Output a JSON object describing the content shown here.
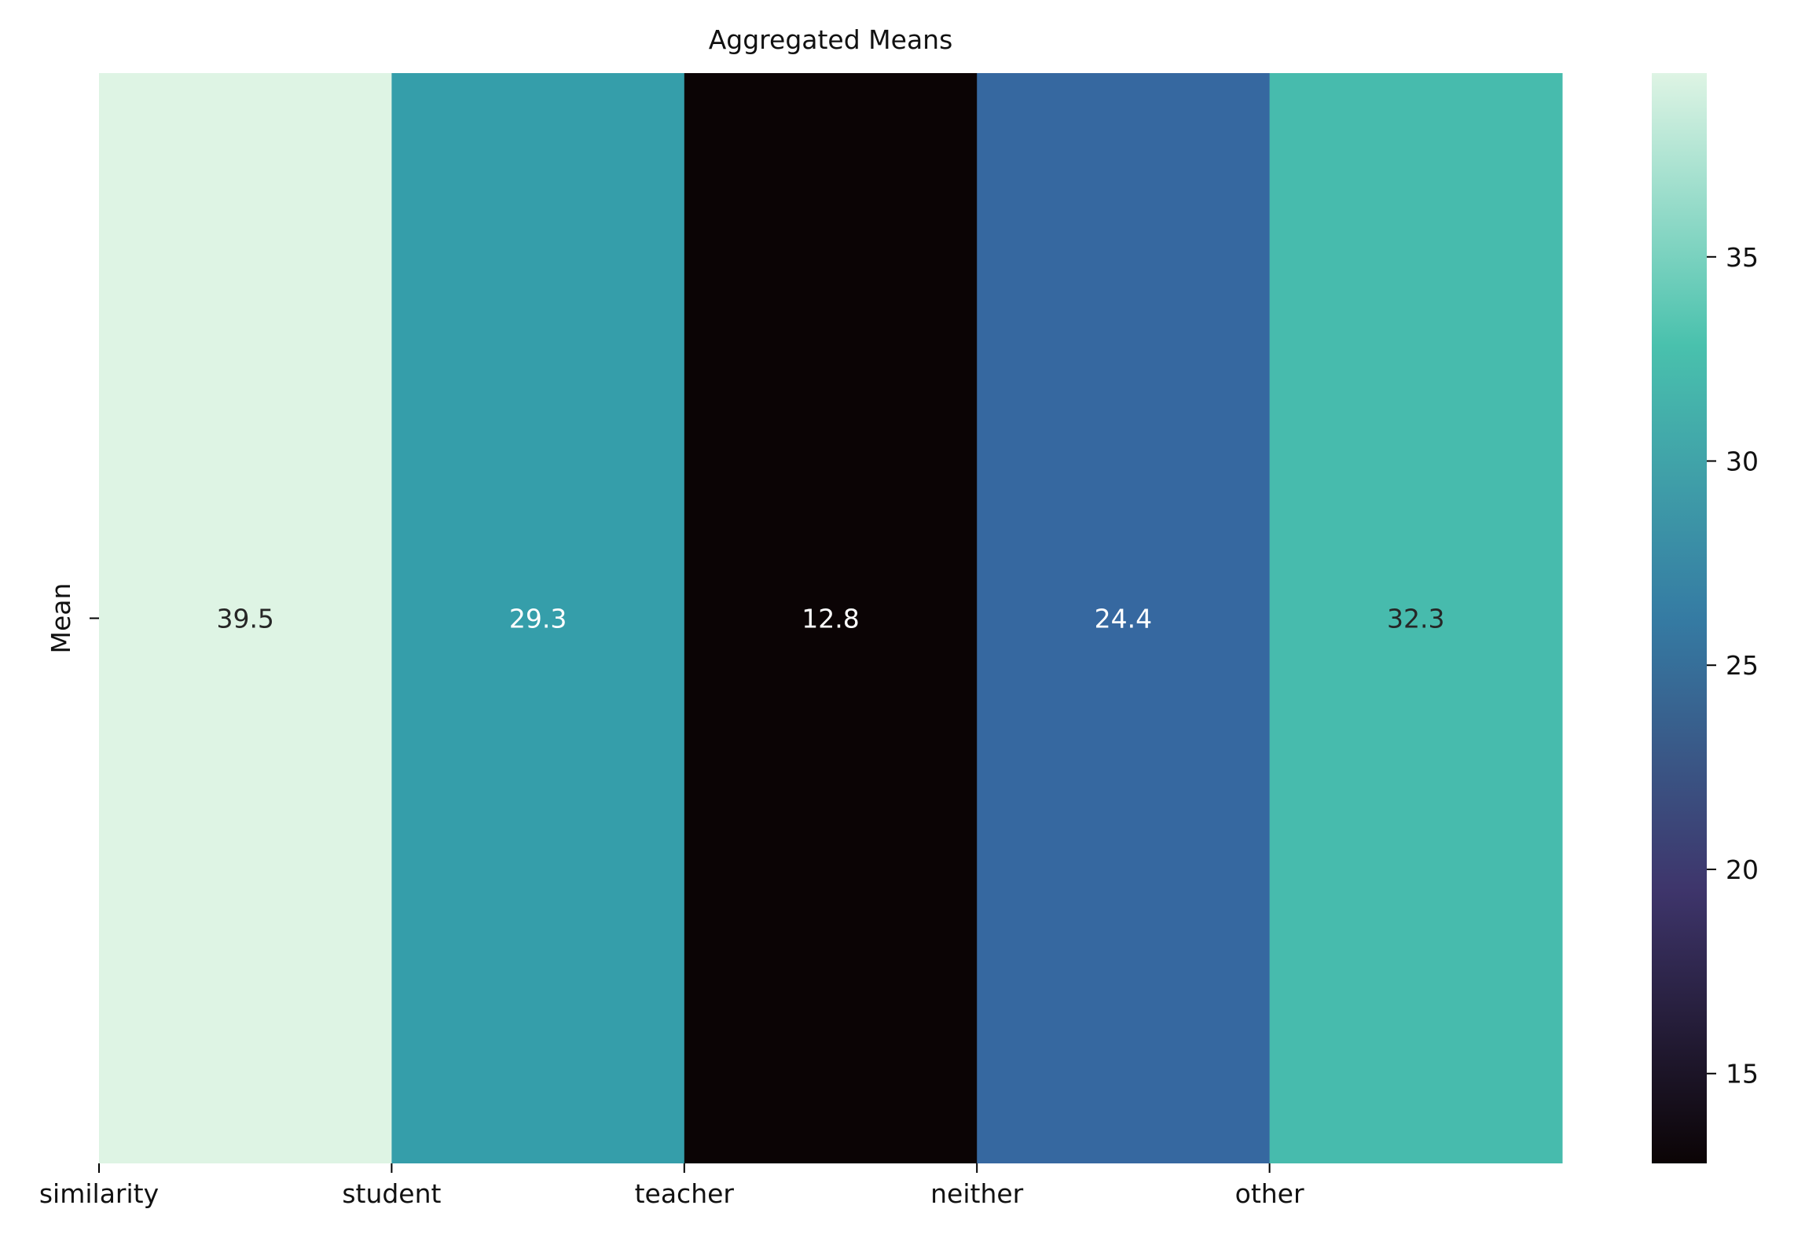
{
  "chart_data": {
    "type": "heatmap",
    "title": "Aggregated Means",
    "xlabel": "",
    "ylabel": "",
    "row_labels": [
      "Mean"
    ],
    "columns": [
      "similarity",
      "student",
      "teacher",
      "neither",
      "other"
    ],
    "values": [
      [
        39.5,
        29.3,
        12.8,
        24.4,
        32.3
      ]
    ],
    "value_labels": [
      "39.5",
      "29.3",
      "12.8",
      "24.4",
      "32.3"
    ],
    "cell_colors": [
      "#def4e4",
      "#359eaa",
      "#0b0405",
      "#3668a0",
      "#47bbad"
    ],
    "colorbar": {
      "vmin": 12.8,
      "vmax": 39.5,
      "ticks": [
        15,
        20,
        25,
        30,
        35
      ],
      "tick_labels": [
        "15",
        "20",
        "25",
        "30",
        "35"
      ],
      "colormap": "mako",
      "stops": [
        "#0b0405",
        "#3e356b",
        "#357ba3",
        "#49c1ad",
        "#def4e4"
      ]
    },
    "grid": false
  }
}
